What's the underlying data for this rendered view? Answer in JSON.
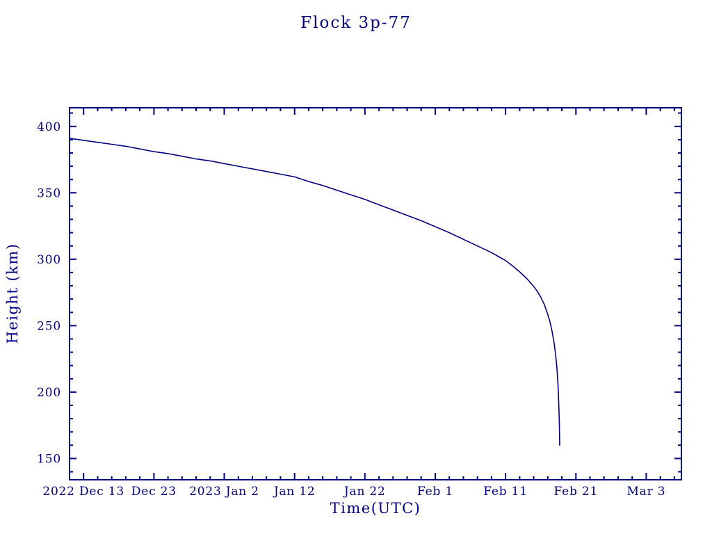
{
  "chart_data": {
    "type": "line",
    "title": "Flock 3p-77",
    "xlabel": "Time(UTC)",
    "ylabel": "Height (km)",
    "colors": {
      "accent": "#000080",
      "background": "#ffffff"
    },
    "x_axis": {
      "unit": "days from 2022 Dec 11 (left edge of frame)",
      "domain": [
        0,
        87
      ],
      "minor_tick_step": 2,
      "ticks": [
        {
          "day": 2,
          "label": "2022 Dec 13"
        },
        {
          "day": 12,
          "label": "Dec 23"
        },
        {
          "day": 22,
          "label": "2023 Jan 2"
        },
        {
          "day": 32,
          "label": "Jan 12"
        },
        {
          "day": 42,
          "label": "Jan 22"
        },
        {
          "day": 52,
          "label": "Feb 1"
        },
        {
          "day": 62,
          "label": "Feb 11"
        },
        {
          "day": 72,
          "label": "Feb 21"
        },
        {
          "day": 82,
          "label": "Mar 3"
        }
      ]
    },
    "y_axis": {
      "unit": "km",
      "domain": [
        134,
        414
      ],
      "minor_tick_step": 10,
      "ticks": [
        150,
        200,
        250,
        300,
        350,
        400
      ]
    },
    "grid": false,
    "legend": "none",
    "series": [
      {
        "name": "Flock 3p-77",
        "color": "#000080",
        "points": [
          [
            0,
            391
          ],
          [
            2,
            389.5
          ],
          [
            4,
            388
          ],
          [
            6,
            386.5
          ],
          [
            8,
            385
          ],
          [
            10,
            383
          ],
          [
            12,
            381
          ],
          [
            14,
            379.5
          ],
          [
            16,
            377.5
          ],
          [
            18,
            375.5
          ],
          [
            20,
            374
          ],
          [
            22,
            372
          ],
          [
            24,
            370
          ],
          [
            26,
            368
          ],
          [
            28,
            366
          ],
          [
            30,
            364
          ],
          [
            32,
            362
          ],
          [
            34,
            358.5
          ],
          [
            36,
            355.5
          ],
          [
            38,
            352
          ],
          [
            40,
            348.5
          ],
          [
            42,
            345
          ],
          [
            44,
            341
          ],
          [
            46,
            337
          ],
          [
            48,
            333
          ],
          [
            50,
            329
          ],
          [
            52,
            324.5
          ],
          [
            54,
            320
          ],
          [
            56,
            315
          ],
          [
            58,
            310
          ],
          [
            60,
            305
          ],
          [
            61,
            302
          ],
          [
            62,
            299
          ],
          [
            63,
            295
          ],
          [
            64,
            290.5
          ],
          [
            65,
            285.5
          ],
          [
            66,
            279.5
          ],
          [
            66.5,
            276
          ],
          [
            67,
            271.5
          ],
          [
            67.5,
            266
          ],
          [
            68,
            258.5
          ],
          [
            68.3,
            253
          ],
          [
            68.6,
            246
          ],
          [
            68.9,
            237
          ],
          [
            69.1,
            229
          ],
          [
            69.3,
            218
          ],
          [
            69.45,
            206
          ],
          [
            69.55,
            193
          ],
          [
            69.65,
            176
          ],
          [
            69.7,
            160
          ]
        ]
      }
    ]
  }
}
